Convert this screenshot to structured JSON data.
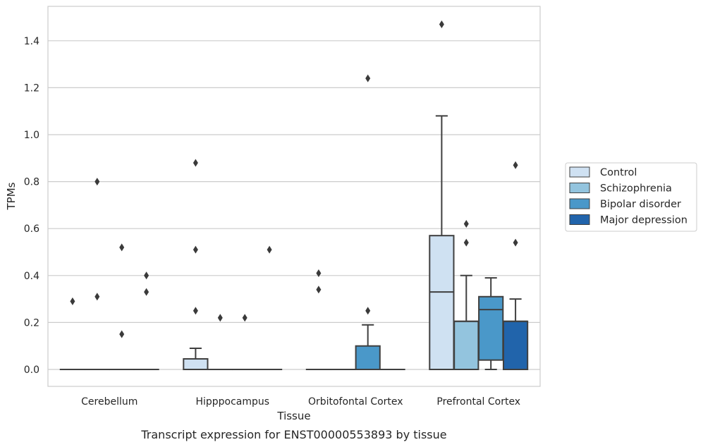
{
  "chart_data": {
    "type": "box",
    "title": "",
    "caption": "Transcript expression for ENST00000553893 by tissue",
    "xlabel": "Tissue",
    "ylabel": "TPMs",
    "ylim": [
      -0.07,
      1.55
    ],
    "yticks": [
      "0.0",
      "0.2",
      "0.4",
      "0.6",
      "0.8",
      "1.0",
      "1.2",
      "1.4"
    ],
    "grid": "horizontal",
    "legend_placement": "right",
    "categories": [
      "Cerebellum",
      "Hipppocampus",
      "Orbitofontal Cortex",
      "Prefrontal Cortex"
    ],
    "series": [
      {
        "name": "Control",
        "color": "#cfe1f2",
        "boxes": [
          {
            "q1": 0,
            "median": 0,
            "q3": 0,
            "whisker_low": 0,
            "whisker_high": 0,
            "outliers": [
              0.29
            ]
          },
          {
            "q1": 0,
            "median": 0,
            "q3": 0.045,
            "whisker_low": 0,
            "whisker_high": 0.09,
            "outliers": [
              0.25,
              0.51,
              0.88
            ]
          },
          {
            "q1": 0,
            "median": 0,
            "q3": 0,
            "whisker_low": 0,
            "whisker_high": 0,
            "outliers": [
              0.34,
              0.41
            ]
          },
          {
            "q1": 0,
            "median": 0.33,
            "q3": 0.57,
            "whisker_low": 0,
            "whisker_high": 1.08,
            "outliers": [
              1.47
            ]
          }
        ]
      },
      {
        "name": "Schizophrenia",
        "color": "#93c4de",
        "boxes": [
          {
            "q1": 0,
            "median": 0,
            "q3": 0,
            "whisker_low": 0,
            "whisker_high": 0,
            "outliers": [
              0.31,
              0.8
            ]
          },
          {
            "q1": 0,
            "median": 0,
            "q3": 0,
            "whisker_low": 0,
            "whisker_high": 0,
            "outliers": [
              0.22
            ]
          },
          {
            "q1": 0,
            "median": 0,
            "q3": 0,
            "whisker_low": 0,
            "whisker_high": 0,
            "outliers": []
          },
          {
            "q1": 0,
            "median": 0.205,
            "q3": 0.205,
            "whisker_low": 0,
            "whisker_high": 0.4,
            "outliers": [
              0.54,
              0.62
            ]
          }
        ]
      },
      {
        "name": "Bipolar disorder",
        "color": "#4a98c9",
        "boxes": [
          {
            "q1": 0,
            "median": 0,
            "q3": 0,
            "whisker_low": 0,
            "whisker_high": 0,
            "outliers": [
              0.15,
              0.52
            ]
          },
          {
            "q1": 0,
            "median": 0,
            "q3": 0,
            "whisker_low": 0,
            "whisker_high": 0,
            "outliers": [
              0.22
            ]
          },
          {
            "q1": 0,
            "median": 0,
            "q3": 0.1,
            "whisker_low": 0,
            "whisker_high": 0.19,
            "outliers": [
              0.25,
              1.24
            ]
          },
          {
            "q1": 0.04,
            "median": 0.255,
            "q3": 0.31,
            "whisker_low": 0,
            "whisker_high": 0.39,
            "outliers": []
          }
        ]
      },
      {
        "name": "Major depression",
        "color": "#2164ab",
        "boxes": [
          {
            "q1": 0,
            "median": 0,
            "q3": 0,
            "whisker_low": 0,
            "whisker_high": 0,
            "outliers": [
              0.33,
              0.4
            ]
          },
          {
            "q1": 0,
            "median": 0,
            "q3": 0,
            "whisker_low": 0,
            "whisker_high": 0,
            "outliers": [
              0.51
            ]
          },
          {
            "q1": 0,
            "median": 0,
            "q3": 0,
            "whisker_low": 0,
            "whisker_high": 0,
            "outliers": []
          },
          {
            "q1": 0,
            "median": 0.205,
            "q3": 0.205,
            "whisker_low": 0,
            "whisker_high": 0.3,
            "outliers": [
              0.54,
              0.87
            ]
          }
        ]
      }
    ]
  }
}
